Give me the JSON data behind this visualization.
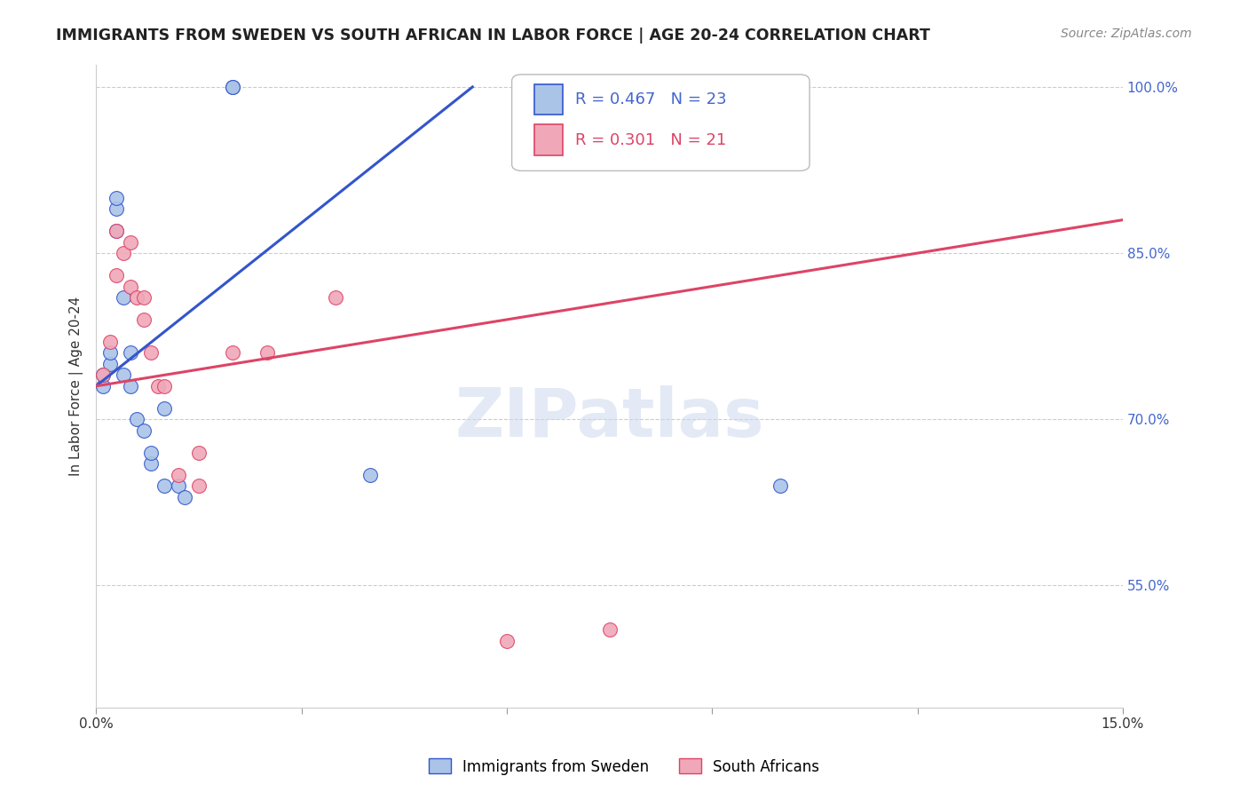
{
  "title": "IMMIGRANTS FROM SWEDEN VS SOUTH AFRICAN IN LABOR FORCE | AGE 20-24 CORRELATION CHART",
  "source": "Source: ZipAtlas.com",
  "ylabel": "In Labor Force | Age 20-24",
  "xlim": [
    0.0,
    0.15
  ],
  "ylim": [
    0.44,
    1.02
  ],
  "xticks": [
    0.0,
    0.03,
    0.06,
    0.09,
    0.12,
    0.15
  ],
  "xtick_labels": [
    "0.0%",
    "",
    "",
    "",
    "",
    "15.0%"
  ],
  "ytick_right": [
    0.55,
    0.7,
    0.85,
    1.0
  ],
  "ytick_right_labels": [
    "55.0%",
    "70.0%",
    "85.0%",
    "100.0%"
  ],
  "legend_label_sweden": "Immigrants from Sweden",
  "legend_label_sa": "South Africans",
  "sweden_color": "#aac4e8",
  "sa_color": "#f0a8b8",
  "trend_blue": "#3355cc",
  "trend_pink": "#dd4466",
  "sweden_x": [
    0.001,
    0.001,
    0.002,
    0.002,
    0.003,
    0.003,
    0.003,
    0.004,
    0.004,
    0.005,
    0.005,
    0.006,
    0.007,
    0.008,
    0.008,
    0.01,
    0.01,
    0.012,
    0.013,
    0.02,
    0.02,
    0.04,
    0.1
  ],
  "sweden_y": [
    0.73,
    0.74,
    0.75,
    0.76,
    0.87,
    0.89,
    0.9,
    0.81,
    0.74,
    0.76,
    0.73,
    0.7,
    0.69,
    0.66,
    0.67,
    0.64,
    0.71,
    0.64,
    0.63,
    1.0,
    1.0,
    0.65,
    0.64
  ],
  "sa_x": [
    0.001,
    0.002,
    0.003,
    0.003,
    0.004,
    0.005,
    0.005,
    0.006,
    0.007,
    0.007,
    0.008,
    0.009,
    0.01,
    0.012,
    0.015,
    0.015,
    0.02,
    0.025,
    0.035,
    0.06,
    0.075
  ],
  "sa_y": [
    0.74,
    0.77,
    0.83,
    0.87,
    0.85,
    0.82,
    0.86,
    0.81,
    0.79,
    0.81,
    0.76,
    0.73,
    0.73,
    0.65,
    0.67,
    0.64,
    0.76,
    0.76,
    0.81,
    0.5,
    0.51
  ],
  "r_sweden": "R = 0.467",
  "n_sweden": "N = 23",
  "r_sa": "R = 0.301",
  "n_sa": "N = 21",
  "watermark": "ZIPatlas",
  "title_fontsize": 12.5,
  "axis_label_fontsize": 11,
  "tick_fontsize": 11,
  "legend_fontsize": 13
}
